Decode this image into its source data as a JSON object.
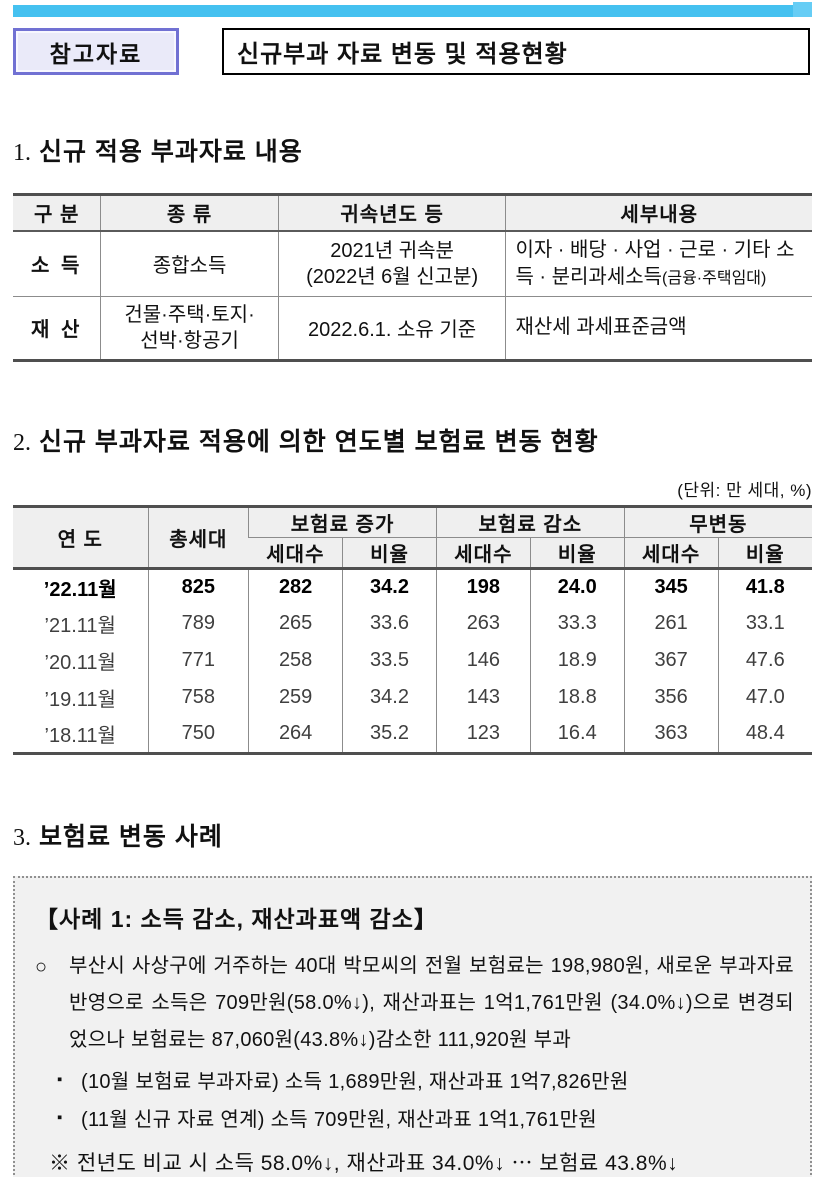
{
  "colors": {
    "accent": "#45c1f0",
    "accent_light": "#66cdf5",
    "ref_border": "#7171d3",
    "ref_bg": "#eaeaf9",
    "table_header_bg": "#efefef",
    "case_bg": "#f1f1f1"
  },
  "header": {
    "ref_label": "참고자료",
    "title": "신규부과 자료 변동 및 적용현황"
  },
  "section1": {
    "number": "1.",
    "heading": "신규 적용 부과자료 내용",
    "table": {
      "headers": [
        "구 분",
        "종 류",
        "귀속년도 등",
        "세부내용"
      ],
      "rows": [
        {
          "category": "소 득",
          "kind": "종합소득",
          "basis": "2021년 귀속분\n(2022년 6월 신고분)",
          "detail": "이자 · 배당 · 사업 · 근로 · 기타 소득 · 분리과세소득",
          "detail_small": "(금융·주택임대)"
        },
        {
          "category": "재 산",
          "kind": "건물·주택·토지·\n선박·항공기",
          "basis": "2022.6.1. 소유 기준",
          "detail": "재산세 과세표준금액",
          "detail_small": ""
        }
      ]
    }
  },
  "section2": {
    "number": "2.",
    "heading": "신규 부과자료 적용에 의한 연도별 보험료 변동 현황",
    "unit_note": "(단위: 만 세대, %)",
    "table": {
      "col_year": "연 도",
      "col_total": "총세대",
      "groups": [
        "보험료 증가",
        "보험료 감소",
        "무변동"
      ],
      "sub": [
        "세대수",
        "비율"
      ],
      "rows": [
        [
          "’22.11월",
          "825",
          "282",
          "34.2",
          "198",
          "24.0",
          "345",
          "41.8"
        ],
        [
          "’21.11월",
          "789",
          "265",
          "33.6",
          "263",
          "33.3",
          "261",
          "33.1"
        ],
        [
          "’20.11월",
          "771",
          "258",
          "33.5",
          "146",
          "18.9",
          "367",
          "47.6"
        ],
        [
          "’19.11월",
          "758",
          "259",
          "34.2",
          "143",
          "18.8",
          "356",
          "47.0"
        ],
        [
          "’18.11월",
          "750",
          "264",
          "35.2",
          "123",
          "16.4",
          "363",
          "48.4"
        ]
      ]
    }
  },
  "section3": {
    "number": "3.",
    "heading": "보험료 변동 사례",
    "case_box": {
      "title": "【사례 1: 소득 감소, 재산과표액 감소】",
      "marker": "○",
      "paragraph": "부산시 사상구에 거주하는 40대 박모씨의 전월 보험료는 198,980원, 새로운 부과자료 반영으로 소득은 709만원(58.0%↓), 재산과표는 1억1,761만원 (34.0%↓)으로 변경되었으나 보험료는 87,060원(43.8%↓)감소한 111,920원 부과",
      "bullet_marker": "▪",
      "bullets": [
        "(10월 보험료 부과자료) 소득 1,689만원, 재산과표 1억7,826만원",
        "(11월 신규 자료 연계) 소득 709만원, 재산과표 1억1,761만원"
      ],
      "note": "※ 전년도 비교 시 소득  58.0%↓, 재산과표  34.0%↓ ⋯ 보험료 43.8%↓"
    }
  }
}
